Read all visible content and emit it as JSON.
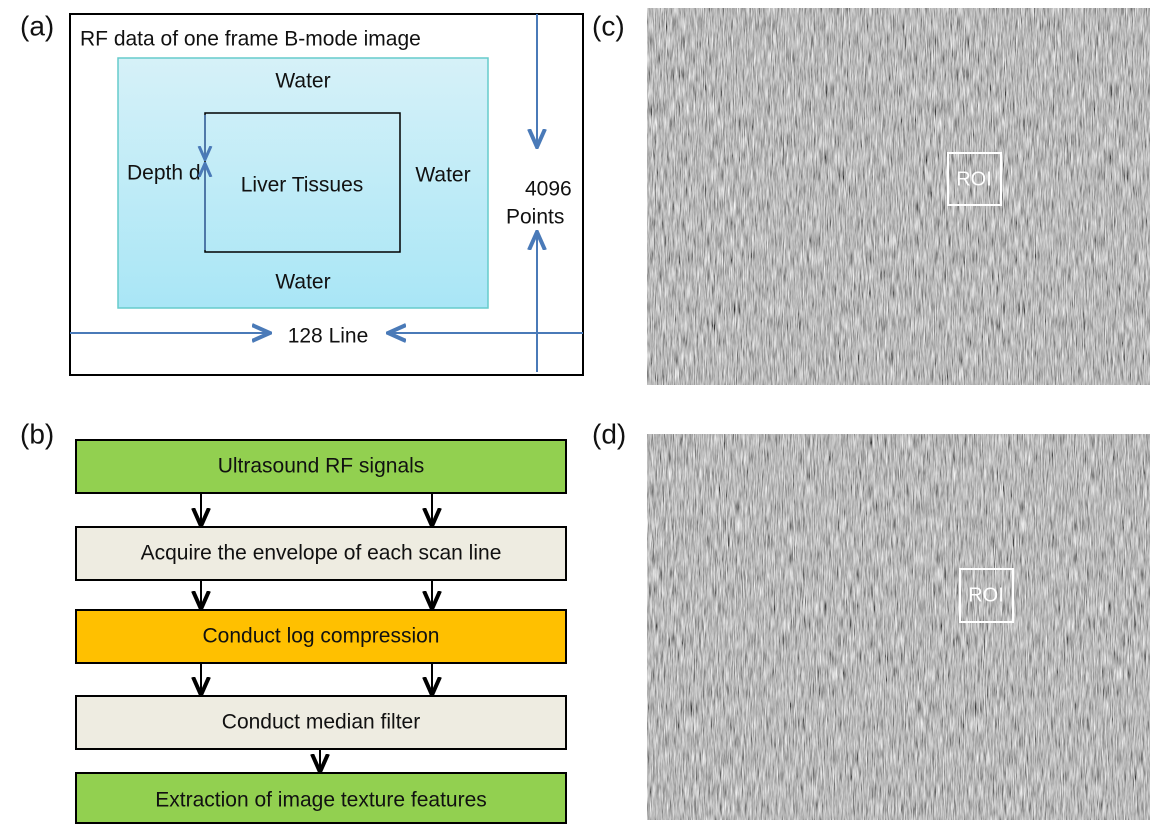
{
  "panel_a": {
    "label": "(a)",
    "title": "RF data of one frame B-mode image",
    "water_top": "Water",
    "water_right": "Water",
    "water_bottom": "Water",
    "depth": "Depth d",
    "tissue": "Liver Tissues",
    "points": [
      "4096",
      "Points"
    ],
    "lines": "128 Line"
  },
  "panel_b": {
    "label": "(b)",
    "steps": [
      "Ultrasound RF signals",
      "Acquire the envelope of each scan line",
      "Conduct log compression",
      "Conduct median filter",
      "Extraction of image texture features"
    ]
  },
  "panel_c": {
    "label": "(c)",
    "roi": "ROI"
  },
  "panel_d": {
    "label": "(d)",
    "roi": "ROI"
  }
}
